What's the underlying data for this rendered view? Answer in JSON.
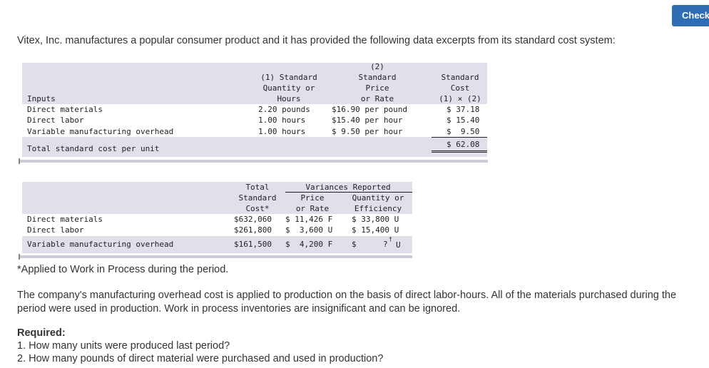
{
  "check_label": "Check",
  "intro": "Vitex, Inc. manufactures a popular consumer product and it has provided the following data excerpts from its standard cost system:",
  "table1": {
    "headers": {
      "inputs": "Inputs",
      "qty_l1": "(1) Standard",
      "qty_l2": "Quantity or",
      "qty_l3": "Hours",
      "price_l1": "(2)",
      "price_l2": "Standard",
      "price_l3": "Price",
      "price_l4": "or Rate",
      "cost_l1": "Standard",
      "cost_l2": "Cost",
      "cost_l3": "(1) × (2)"
    },
    "rows": [
      {
        "label": "Direct materials",
        "qty": "2.20 pounds",
        "price": "$16.90 per pound",
        "cost": "$ 37.18"
      },
      {
        "label": "Direct labor",
        "qty": "1.00 hours",
        "price": "$15.40 per hour",
        "cost": "$ 15.40"
      },
      {
        "label": "Variable manufacturing overhead",
        "qty": "1.00 hours",
        "price": "$ 9.50 per hour",
        "cost": "$  9.50"
      }
    ],
    "total_label": "Total standard cost per unit",
    "total_value": "$ 62.08"
  },
  "table2": {
    "headers": {
      "total_l1": "Total",
      "total_l2": "Standard",
      "total_l3": "Cost*",
      "variances": "Variances Reported",
      "price_l1": "Price",
      "price_l2": "or Rate",
      "qty_l1": "Quantity or",
      "qty_l2": "Efficiency"
    },
    "rows": [
      {
        "label": "Direct materials",
        "total": "$632,060",
        "price": "$ 11,426 F",
        "qty": "$ 33,800 U"
      },
      {
        "label": "Direct labor",
        "total": "$261,800",
        "price": "$  3,600 U",
        "qty": "$ 15,400 U"
      },
      {
        "label": "Variable manufacturing overhead",
        "total": "$161,500",
        "price": "$  4,200 F",
        "qty_dollar": "$",
        "qty_q": "?",
        "qty_mark": "†",
        "qty_u": "U"
      }
    ]
  },
  "footnote": "*Applied to Work in Process during the period.",
  "paragraph": "The company's manufacturing overhead cost is applied to production on the basis of direct labor-hours. All of the materials purchased during the period were used in production. Work in process inventories are insignificant and can be ignored.",
  "required_heading": "Required:",
  "required_items": [
    "1. How many units were produced last period?",
    "2. How many pounds of direct material were purchased and used in production?"
  ]
}
